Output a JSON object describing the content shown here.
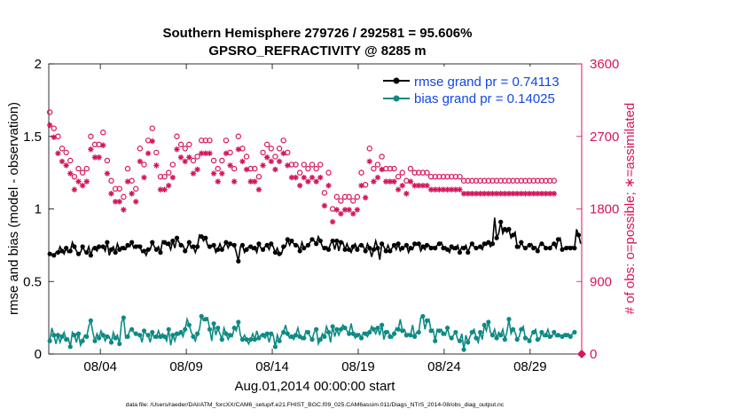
{
  "chart_data": {
    "type": "line",
    "title": "Southern Hemisphere 279726 / 292581 = 95.606%",
    "subtitle": "GPSRO_REFRACTIVITY @ 8285 m",
    "xlabel": "Aug.01,2014 00:00:00 start",
    "ylabel": "rmse and bias (model - observation)",
    "y2label": "# of obs: o=possible; ∗=assimilated",
    "footnote": "data file: /Users/raeder/DAI/ATM_forcXX/CAM6_setup/f.e21.FHIST_BGC.f09_025.CAM6assim.011/Diags_NTrS_2014-08/obs_diag_output.nc",
    "xlim": [
      1,
      32
    ],
    "x_ticks": [
      4,
      9,
      14,
      19,
      24,
      29
    ],
    "x_ticklabels": [
      "08/04",
      "08/09",
      "08/14",
      "08/19",
      "08/24",
      "08/29"
    ],
    "ylim": [
      0,
      2
    ],
    "y_ticks": [
      0,
      0.5,
      1,
      1.5,
      2
    ],
    "y_ticklabels": [
      "0",
      "0.5",
      "1",
      "1.5",
      "2"
    ],
    "y2lim": [
      0,
      3600
    ],
    "y2_ticks": [
      0,
      900,
      1800,
      2700,
      3600
    ],
    "y2_ticklabels": [
      "0",
      "900",
      "1800",
      "2700",
      "3600"
    ],
    "legend_position": "top-right",
    "colors": {
      "rmse": "#000000",
      "bias": "#0e8a84",
      "obs": "#d6145c",
      "legend_text": "#1346e6"
    },
    "series": [
      {
        "name": "rmse grand pr = 0.74113",
        "axis": "left",
        "values": [
          0.69,
          0.69,
          0.68,
          0.7,
          0.7,
          0.74,
          0.71,
          0.69,
          0.73,
          0.7,
          0.71,
          0.77,
          0.74,
          0.71,
          0.69,
          0.7,
          0.74,
          0.71,
          0.7,
          0.74,
          0.68,
          0.73,
          0.73,
          0.71,
          0.74,
          0.74,
          0.74,
          0.71,
          0.77,
          0.68,
          0.72,
          0.74,
          0.7,
          0.76,
          0.72,
          0.74,
          0.73,
          0.72,
          0.75,
          0.74,
          0.77,
          0.73,
          0.74,
          0.75,
          0.74,
          0.7,
          0.71,
          0.68,
          0.72,
          0.72,
          0.77,
          0.74,
          0.72,
          0.74,
          0.7,
          0.78,
          0.77,
          0.75,
          0.76,
          0.72,
          0.78,
          0.73,
          0.8,
          0.77,
          0.75,
          0.75,
          0.71,
          0.73,
          0.77,
          0.73,
          0.74,
          0.7,
          0.74,
          0.82,
          0.81,
          0.78,
          0.8,
          0.75,
          0.74,
          0.75,
          0.75,
          0.7,
          0.72,
          0.76,
          0.72,
          0.74,
          0.77,
          0.73,
          0.76,
          0.75,
          0.75,
          0.7,
          0.64,
          0.74,
          0.75,
          0.7,
          0.72,
          0.74,
          0.74,
          0.72,
          0.73,
          0.7,
          0.76,
          0.73,
          0.72,
          0.74,
          0.75,
          0.72,
          0.76,
          0.74,
          0.7,
          0.73,
          0.69,
          0.69,
          0.74,
          0.74,
          0.79,
          0.75,
          0.78,
          0.76,
          0.75,
          0.75,
          0.71,
          0.77,
          0.73,
          0.74,
          0.75,
          0.77,
          0.79,
          0.78,
          0.76,
          0.81,
          0.78,
          0.74,
          0.73,
          0.74,
          0.72,
          0.76,
          0.78,
          0.72,
          0.78,
          0.71,
          0.77,
          0.77,
          0.72,
          0.76,
          0.72,
          0.7,
          0.74,
          0.76,
          0.72,
          0.75,
          0.75,
          0.74,
          0.71,
          0.76,
          0.73,
          0.67,
          0.72,
          0.78,
          0.73,
          0.65,
          0.76,
          0.74,
          0.71,
          0.75,
          0.71,
          0.73,
          0.75,
          0.72,
          0.76,
          0.71,
          0.73,
          0.74,
          0.75,
          0.7,
          0.73,
          0.72,
          0.76,
          0.75,
          0.76,
          0.71,
          0.74,
          0.72,
          0.75,
          0.75,
          0.73,
          0.74,
          0.73,
          0.75,
          0.76,
          0.77,
          0.73,
          0.74,
          0.72,
          0.7,
          0.74,
          0.72,
          0.73,
          0.75,
          0.7,
          0.74,
          0.73,
          0.75,
          0.7,
          0.74,
          0.76,
          0.74,
          0.73,
          0.73,
          0.74,
          0.72,
          0.76,
          0.75,
          0.77,
          0.74,
          0.76,
          0.94,
          0.8,
          0.83,
          0.91,
          0.83,
          0.86,
          0.84,
          0.86,
          0.8,
          0.82,
          0.84,
          0.74,
          0.73,
          0.77,
          0.74,
          0.73,
          0.74,
          0.75,
          0.76,
          0.73,
          0.74,
          0.71,
          0.75,
          0.76,
          0.75,
          0.73,
          0.73,
          0.73,
          0.75,
          0.76,
          0.73,
          0.79,
          0.8,
          0.72,
          0.73,
          0.73,
          0.74,
          0.73,
          0.74,
          0.73,
          0.86,
          0.82,
          0.76
        ]
      },
      {
        "name": "bias grand pr = 0.14025",
        "axis": "left",
        "values": [
          0.09,
          0.18,
          0.13,
          0.07,
          0.13,
          0.08,
          0.12,
          0.15,
          0.1,
          0.11,
          0.05,
          0.15,
          0.13,
          0.08,
          0.14,
          0.06,
          0.09,
          0.13,
          0.12,
          0.19,
          0.23,
          0.15,
          0.09,
          0.14,
          0.11,
          0.16,
          0.13,
          0.09,
          0.12,
          0.12,
          0.08,
          0.15,
          0.11,
          0.13,
          0.07,
          0.22,
          0.25,
          0.11,
          0.12,
          0.16,
          0.17,
          0.15,
          0.14,
          0.13,
          0.13,
          0.08,
          0.16,
          0.14,
          0.13,
          0.08,
          0.15,
          0.11,
          0.12,
          0.16,
          0.12,
          0.14,
          0.12,
          0.09,
          0.17,
          0.06,
          0.13,
          0.09,
          0.14,
          0.13,
          0.15,
          0.12,
          0.17,
          0.24,
          0.2,
          0.15,
          0.12,
          0.09,
          0.14,
          0.17,
          0.26,
          0.23,
          0.24,
          0.25,
          0.17,
          0.09,
          0.21,
          0.13,
          0.18,
          0.14,
          0.1,
          0.18,
          0.14,
          0.1,
          0.13,
          0.12,
          0.18,
          0.16,
          0.22,
          0.13,
          0.1,
          0.13,
          0.1,
          0.07,
          0.1,
          0.14,
          0.1,
          0.16,
          0.11,
          0.13,
          0.13,
          0.11,
          0.14,
          0.08,
          0.14,
          0.13,
          0.05,
          0.13,
          0.09,
          0.13,
          0.15,
          0.2,
          0.14,
          0.11,
          0.12,
          0.1,
          0.13,
          0.18,
          0.12,
          0.1,
          0.11,
          0.16,
          0.15,
          0.12,
          0.1,
          0.15,
          0.17,
          0.07,
          0.1,
          0.14,
          0.12,
          0.19,
          0.15,
          0.08,
          0.19,
          0.12,
          0.17,
          0.13,
          0.17,
          0.2,
          0.18,
          0.16,
          0.14,
          0.21,
          0.14,
          0.11,
          0.13,
          0.14,
          0.11,
          0.15,
          0.14,
          0.12,
          0.15,
          0.19,
          0.17,
          0.14,
          0.18,
          0.13,
          0.2,
          0.1,
          0.15,
          0.16,
          0.12,
          0.11,
          0.14,
          0.18,
          0.17,
          0.24,
          0.16,
          0.17,
          0.13,
          0.14,
          0.13,
          0.2,
          0.12,
          0.15,
          0.15,
          0.25,
          0.26,
          0.17,
          0.23,
          0.24,
          0.16,
          0.17,
          0.09,
          0.17,
          0.16,
          0.17,
          0.14,
          0.13,
          0.18,
          0.12,
          0.11,
          0.13,
          0.15,
          0.1,
          0.09,
          0.14,
          0.03,
          0.13,
          0.08,
          0.12,
          0.15,
          0.17,
          0.11,
          0.08,
          0.15,
          0.1,
          0.2,
          0.16,
          0.22,
          0.15,
          0.13,
          0.17,
          0.11,
          0.15,
          0.13,
          0.17,
          0.1,
          0.15,
          0.24,
          0.14,
          0.17,
          0.15,
          0.1,
          0.12,
          0.17,
          0.19,
          0.11,
          0.11,
          0.09,
          0.13,
          0.15,
          0.17,
          0.1,
          0.1,
          0.15,
          0.12,
          0.13,
          0.17,
          0.12,
          0.12,
          0.15,
          0.12,
          0.13,
          0.13,
          0.12,
          0.14,
          0.13,
          0.14,
          0.12,
          0.14,
          0.15
        ]
      },
      {
        "name": "possible (o)",
        "axis": "right",
        "values": [
          3000,
          3000,
          2800,
          2800,
          2700,
          2800,
          2550,
          2700,
          2500,
          2600,
          2400,
          2600,
          2200,
          2100,
          2300,
          2450,
          2250,
          2400,
          2300,
          2650,
          2700,
          2300,
          2600,
          2650,
          2600,
          2650,
          2750,
          2000,
          2400,
          2250,
          2150,
          1950,
          2050,
          1850,
          2050,
          2250,
          1950,
          2200,
          2300,
          2050,
          2150,
          2400,
          2050,
          2300,
          2550,
          2450,
          2350,
          2550,
          2650,
          2600,
          2800,
          2400,
          2500,
          2350,
          2200,
          2250,
          2200,
          2100,
          2250,
          2450,
          2350,
          2550,
          2700,
          2400,
          2600,
          2450,
          2550,
          2400,
          2600,
          2350,
          2400,
          2350,
          2450,
          2550,
          2650,
          2600,
          2650,
          2500,
          2650,
          2700,
          2400,
          2600,
          2300,
          2200,
          2400,
          2550,
          2650,
          2400,
          2500,
          2500,
          2300,
          2600,
          2700,
          2600,
          2550,
          2500,
          2450,
          2650,
          2300,
          2100,
          2300,
          2500,
          2200,
          2400,
          2500,
          2450,
          2600,
          2500,
          2550,
          2600,
          2450,
          2400,
          2550,
          2550,
          2650,
          2350,
          2500,
          2400,
          2350,
          2250,
          2350,
          2500,
          2250,
          2300,
          2350,
          2250,
          2300,
          2550,
          2350,
          2200,
          2300,
          2200,
          2350,
          2050,
          2000,
          2150,
          2250,
          2050,
          1800,
          1850,
          1950,
          1750,
          1900,
          2050,
          1950,
          2100,
          1950,
          2000,
          1900,
          2050,
          1950,
          2150,
          2250,
          2050,
          2100,
          2200,
          2550,
          2600,
          2300,
          2250,
          2350,
          2300,
          2450,
          2250,
          2300,
          2350,
          2300,
          2250,
          2300,
          2150,
          2200,
          2250,
          2250,
          2200,
          2150,
          2250,
          2300,
          2200,
          2250,
          2200,
          2250,
          2200,
          2250,
          2200,
          2250,
          2250,
          2200,
          2250,
          2200,
          2250,
          2200,
          2150,
          2200,
          2250,
          2200,
          2150,
          2200,
          2150,
          2200,
          2150,
          2200,
          2200,
          2150,
          2200,
          2150,
          2200,
          2150,
          2200,
          2150,
          2200,
          2150,
          2200,
          2150,
          2200,
          2150,
          2200,
          2150,
          2200,
          2150,
          2200,
          2150,
          2200,
          2150,
          2200,
          2150,
          2200,
          2150,
          2200,
          2150,
          2200,
          2150,
          2200,
          2150,
          2200,
          2150,
          2200,
          2150,
          2200,
          2150,
          2200,
          2150,
          2200,
          2150,
          2200,
          2150,
          2200,
          2150,
          2200
        ]
      },
      {
        "name": "assimilated (∗)",
        "axis": "right",
        "values": [
          2900,
          2900,
          2750,
          2700,
          2550,
          2650,
          2450,
          2600,
          2400,
          2500,
          2300,
          2450,
          2100,
          2000,
          2200,
          2300,
          2150,
          2300,
          2200,
          2550,
          2600,
          2200,
          2500,
          2550,
          2500,
          2550,
          2650,
          1900,
          2300,
          2150,
          2050,
          1850,
          1950,
          1750,
          1950,
          2150,
          1850,
          2100,
          2200,
          1950,
          2050,
          2300,
          1950,
          2200,
          2450,
          2350,
          2250,
          2450,
          2550,
          2500,
          2700,
          2300,
          2400,
          2250,
          2100,
          2150,
          2100,
          2000,
          2150,
          2350,
          2250,
          2450,
          2600,
          2300,
          2500,
          2350,
          2450,
          2300,
          2500,
          2250,
          2300,
          2250,
          2350,
          2450,
          2550,
          2500,
          2550,
          2400,
          2550,
          2600,
          2300,
          2500,
          2200,
          2100,
          2300,
          2450,
          2550,
          2300,
          2400,
          2400,
          2200,
          2500,
          2600,
          2500,
          2450,
          2400,
          2350,
          2550,
          2200,
          2000,
          2200,
          2400,
          2100,
          2300,
          2400,
          2350,
          2500,
          2400,
          2450,
          2500,
          2350,
          2300,
          2450,
          2450,
          2550,
          2250,
          2400,
          2300,
          2250,
          2150,
          2250,
          2400,
          2150,
          2200,
          2250,
          2150,
          2200,
          2450,
          2250,
          2100,
          2200,
          2100,
          2250,
          1950,
          1900,
          2050,
          2150,
          1950,
          1700,
          1750,
          1850,
          1650,
          1800,
          1950,
          1850,
          2000,
          1850,
          1900,
          1800,
          1950,
          1850,
          2050,
          2150,
          1950,
          2000,
          2100,
          2450,
          2500,
          2200,
          2150,
          2250,
          2200,
          2350,
          2150,
          2200,
          2250,
          2200,
          2150,
          2200,
          2050,
          2100,
          2150,
          2150,
          2100,
          2050,
          2150,
          2200,
          2100,
          2150,
          2100,
          2150,
          2100,
          2150,
          2100,
          2150,
          2150,
          2100,
          2150,
          2100,
          2150,
          2100,
          2050,
          2100,
          2150,
          2100,
          2050,
          2100,
          2050,
          2100,
          2050,
          2100,
          2100,
          2050,
          2100,
          2050,
          2100,
          2050,
          2100,
          2050,
          2100,
          2050,
          2100,
          2050,
          2100,
          2050,
          2100,
          2050,
          2100,
          2050,
          2100,
          2050,
          2100,
          2050,
          2100,
          2050,
          2100,
          2050,
          2100,
          2050,
          2100,
          2050,
          2100,
          2050,
          2100,
          2050,
          2100,
          2050,
          2100,
          2050,
          2100,
          2050,
          2100,
          2050,
          2100,
          2050,
          2100,
          2050,
          2100
        ]
      }
    ]
  }
}
